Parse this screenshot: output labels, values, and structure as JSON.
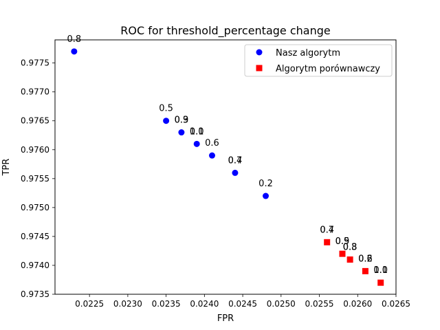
{
  "chart_data": {
    "type": "scatter",
    "title": "ROC for threshold_percentage change",
    "xlabel": "FPR",
    "ylabel": "TPR",
    "xlim": [
      0.02205,
      0.0265
    ],
    "ylim": [
      0.9735,
      0.9779
    ],
    "xticks": [
      "0.0225",
      "0.0230",
      "0.0235",
      "0.0240",
      "0.0245",
      "0.0250",
      "0.0255",
      "0.0260",
      "0.0265"
    ],
    "xtick_values": [
      0.0225,
      0.023,
      0.0235,
      0.024,
      0.0245,
      0.025,
      0.0255,
      0.026,
      0.0265
    ],
    "yticks": [
      "0.9735",
      "0.9740",
      "0.9745",
      "0.9750",
      "0.9755",
      "0.9760",
      "0.9765",
      "0.9770",
      "0.9775"
    ],
    "ytick_values": [
      0.9735,
      0.974,
      0.9745,
      0.975,
      0.9755,
      0.976,
      0.9765,
      0.977,
      0.9775
    ],
    "grid": false,
    "legend_position": "top-right",
    "series": [
      {
        "name": "Nasz algorytm",
        "marker": "circle",
        "color": "#0000ff",
        "points": [
          {
            "x": 0.0223,
            "y": 0.9777,
            "labels": [
              "0.8"
            ]
          },
          {
            "x": 0.0235,
            "y": 0.9765,
            "labels": [
              "0.5"
            ]
          },
          {
            "x": 0.0237,
            "y": 0.9763,
            "labels": [
              "0.9",
              "0.3"
            ]
          },
          {
            "x": 0.0239,
            "y": 0.9761,
            "labels": [
              "1.0",
              "0.1"
            ]
          },
          {
            "x": 0.0241,
            "y": 0.9759,
            "labels": [
              "0.6"
            ]
          },
          {
            "x": 0.0244,
            "y": 0.9756,
            "labels": [
              "0.7",
              "0.4"
            ]
          },
          {
            "x": 0.0248,
            "y": 0.9752,
            "labels": [
              "0.2"
            ]
          }
        ]
      },
      {
        "name": "Algorytm porównawczy",
        "marker": "square",
        "color": "#ff0000",
        "points": [
          {
            "x": 0.0256,
            "y": 0.9744,
            "labels": [
              "0.7",
              "0.4"
            ]
          },
          {
            "x": 0.0258,
            "y": 0.9742,
            "labels": [
              "0.9",
              "0.5"
            ]
          },
          {
            "x": 0.0259,
            "y": 0.9741,
            "labels": [
              "0.8",
              "0.3"
            ]
          },
          {
            "x": 0.0261,
            "y": 0.9739,
            "labels": [
              "0.6",
              "0.2"
            ]
          },
          {
            "x": 0.0263,
            "y": 0.9737,
            "labels": [
              "1.0",
              "0.1"
            ]
          }
        ]
      }
    ]
  }
}
